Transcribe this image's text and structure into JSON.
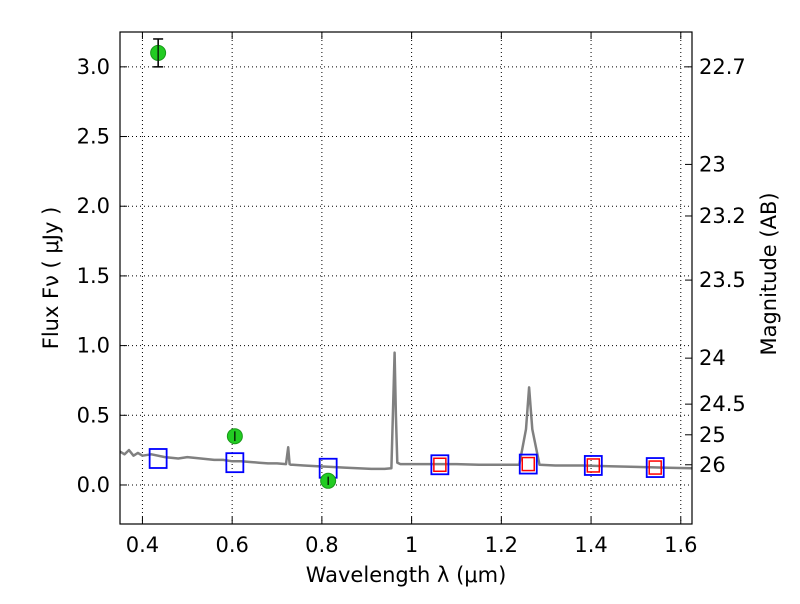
{
  "chart_data": {
    "type": "scatter",
    "xlabel": "Wavelength  λ (μm)",
    "ylabel": "Flux  Fν  ( μJy )",
    "y2label": "Magnitude (AB)",
    "xlim": [
      0.35,
      1.625
    ],
    "ylim": [
      -0.28,
      3.25
    ],
    "x_ticks": [
      0.4,
      0.6,
      0.8,
      1.0,
      1.2,
      1.4,
      1.6
    ],
    "x_tick_labels": [
      "0.4",
      "0.6",
      "0.8",
      "1",
      "1.2",
      "1.4",
      "1.6"
    ],
    "y_ticks": [
      0.0,
      0.5,
      1.0,
      1.5,
      2.0,
      2.5,
      3.0
    ],
    "y_tick_labels": [
      "0.0",
      "0.5",
      "1.0",
      "1.5",
      "2.0",
      "2.5",
      "3.0"
    ],
    "y2_ticks": [
      {
        "label": "22.7",
        "flux": 3.0
      },
      {
        "label": "23",
        "flux": 2.3
      },
      {
        "label": "23.2",
        "flux": 1.93
      },
      {
        "label": "23.5",
        "flux": 1.47
      },
      {
        "label": "24",
        "flux": 0.91
      },
      {
        "label": "24.5",
        "flux": 0.58
      },
      {
        "label": "25",
        "flux": 0.36
      },
      {
        "label": "26",
        "flux": 0.145
      }
    ],
    "grid": true,
    "series": [
      {
        "kind": "spectrum",
        "color": "#808080",
        "x": [
          0.35,
          0.36,
          0.37,
          0.38,
          0.39,
          0.4,
          0.42,
          0.45,
          0.48,
          0.5,
          0.53,
          0.56,
          0.58,
          0.6,
          0.62,
          0.64,
          0.66,
          0.68,
          0.7,
          0.72,
          0.725,
          0.728,
          0.731,
          0.735,
          0.76,
          0.79,
          0.82,
          0.85,
          0.88,
          0.91,
          0.94,
          0.955,
          0.962,
          0.965,
          0.968,
          0.975,
          0.99,
          1.02,
          1.06,
          1.1,
          1.15,
          1.2,
          1.24,
          1.255,
          1.262,
          1.269,
          1.285,
          1.32,
          1.38,
          1.44,
          1.5,
          1.56,
          1.625
        ],
        "y": [
          0.24,
          0.22,
          0.25,
          0.21,
          0.23,
          0.21,
          0.22,
          0.2,
          0.19,
          0.2,
          0.19,
          0.18,
          0.18,
          0.17,
          0.17,
          0.165,
          0.16,
          0.155,
          0.155,
          0.15,
          0.27,
          0.15,
          0.145,
          0.145,
          0.14,
          0.135,
          0.13,
          0.125,
          0.12,
          0.115,
          0.115,
          0.12,
          0.95,
          0.5,
          0.16,
          0.15,
          0.15,
          0.15,
          0.15,
          0.15,
          0.145,
          0.145,
          0.145,
          0.4,
          0.7,
          0.4,
          0.145,
          0.14,
          0.14,
          0.135,
          0.13,
          0.125,
          0.12
        ]
      },
      {
        "kind": "model_photometry",
        "color": "#0000ff",
        "x": [
          0.435,
          0.606,
          0.814,
          1.063,
          1.26,
          1.405,
          1.543
        ],
        "y": [
          0.19,
          0.16,
          0.12,
          0.145,
          0.15,
          0.14,
          0.125
        ]
      },
      {
        "kind": "observed_photometry_inner",
        "color": "#ff0000",
        "x": [
          1.063,
          1.26,
          1.405,
          1.543
        ],
        "y": [
          0.145,
          0.15,
          0.14,
          0.125
        ]
      },
      {
        "kind": "observed_photometry",
        "color": "#22cc22",
        "x": [
          0.435,
          0.606,
          0.814
        ],
        "y": [
          3.1,
          0.35,
          0.03
        ],
        "yerr": [
          0.1,
          0.035,
          0.03
        ]
      }
    ]
  }
}
